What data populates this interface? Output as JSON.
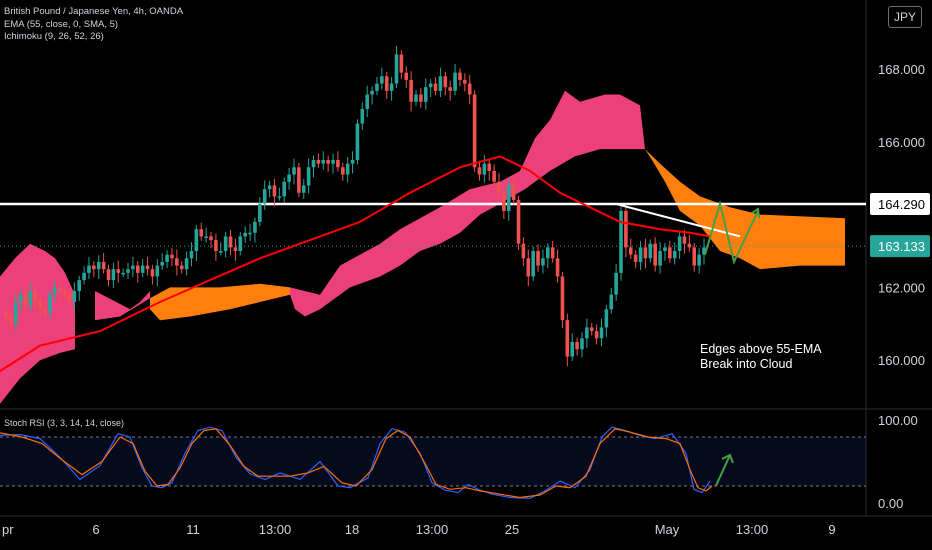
{
  "header": {
    "symbol": "British Pound / Japanese Yen, 4h, OANDA",
    "ema": "EMA (55, close, 0, SMA, 5)",
    "ichimoku": "Ichimoku (9, 26, 52, 26)",
    "currency": "JPY"
  },
  "stoch_legend": "Stoch RSI (3, 3, 14, 14, close)",
  "annotation": {
    "line1": "Edges above 55-EMA",
    "line2": "Break into Cloud"
  },
  "colors": {
    "up": "#26a69a",
    "down": "#ef5350",
    "ema": "#ff0000",
    "cloud_bull": "#ff7f0e",
    "cloud_bear": "#ec407a",
    "stoch_k": "#2962ff",
    "stoch_d": "#ff6d00",
    "arrow": "#43a047"
  },
  "chart_data": [
    {
      "type": "candlestick",
      "ylim": [
        158.6,
        169.6
      ],
      "yticks": [
        "168.000",
        "166.000",
        "162.000",
        "160.000"
      ],
      "xticks": [
        "pr",
        "6",
        "11",
        "13:00",
        "18",
        "13:00",
        "25",
        "May",
        "13:00",
        "9"
      ],
      "price_labels": [
        "164.290",
        "163.133"
      ],
      "resistance": 164.29,
      "last_price": 163.133,
      "closes": [
        161.2,
        161.0,
        161.6,
        161.8,
        161.5,
        161.9,
        161.6,
        161.4,
        161.3,
        161.8,
        162.0,
        161.9,
        161.8,
        161.6,
        161.9,
        162.2,
        162.4,
        162.6,
        162.5,
        162.7,
        162.5,
        162.2,
        162.5,
        162.4,
        162.4,
        162.5,
        162.6,
        162.4,
        162.6,
        162.5,
        162.3,
        162.6,
        162.7,
        162.9,
        162.8,
        162.6,
        162.5,
        162.8,
        163.0,
        163.6,
        163.4,
        163.4,
        163.3,
        163.0,
        163.0,
        163.4,
        163.1,
        163.0,
        163.4,
        163.5,
        163.5,
        163.8,
        164.3,
        164.7,
        164.8,
        164.5,
        164.5,
        164.9,
        165.1,
        165.3,
        164.6,
        164.8,
        165.3,
        165.5,
        165.4,
        165.5,
        165.4,
        165.5,
        165.3,
        165.1,
        165.4,
        165.5,
        166.5,
        166.9,
        167.3,
        167.4,
        167.6,
        167.8,
        167.4,
        167.6,
        168.4,
        167.9,
        167.7,
        167.1,
        167.3,
        167.1,
        167.5,
        167.6,
        167.4,
        167.8,
        167.5,
        167.4,
        167.9,
        167.7,
        167.6,
        167.3,
        165.3,
        165.1,
        165.4,
        165.2,
        164.9,
        164.6,
        164.1,
        164.8,
        164.4,
        163.2,
        162.8,
        162.3,
        163.0,
        162.6,
        162.8,
        163.1,
        162.8,
        162.3,
        161.1,
        160.1,
        160.5,
        160.3,
        160.6,
        160.9,
        160.8,
        160.6,
        160.9,
        161.4,
        161.8,
        162.4,
        164.1,
        163.1,
        162.9,
        162.7,
        163.1,
        162.8,
        163.2,
        162.6,
        163.0,
        163.1,
        162.8,
        163.0,
        163.4,
        163.2,
        163.1,
        162.6,
        162.9,
        163.1
      ],
      "ema55": [
        [
          0,
          159.7
        ],
        [
          40,
          160.4
        ],
        [
          100,
          160.8
        ],
        [
          160,
          161.6
        ],
        [
          210,
          162.2
        ],
        [
          260,
          162.8
        ],
        [
          310,
          163.3
        ],
        [
          360,
          163.8
        ],
        [
          410,
          164.6
        ],
        [
          460,
          165.3
        ],
        [
          500,
          165.6
        ],
        [
          530,
          165.2
        ],
        [
          560,
          164.6
        ],
        [
          590,
          164.2
        ],
        [
          620,
          163.8
        ],
        [
          660,
          163.6
        ],
        [
          690,
          163.5
        ],
        [
          710,
          163.4
        ]
      ],
      "cloud_bear": [
        [
          [
            0,
            162.3
          ],
          [
            15,
            162.8
          ],
          [
            30,
            163.2
          ],
          [
            45,
            163.0
          ],
          [
            55,
            162.8
          ],
          [
            65,
            162.4
          ],
          [
            75,
            161.8
          ],
          [
            75,
            160.3
          ],
          [
            60,
            160.2
          ],
          [
            40,
            160.0
          ],
          [
            20,
            159.5
          ],
          [
            0,
            158.8
          ]
        ],
        [
          [
            95,
            161.9
          ],
          [
            130,
            161.4
          ],
          [
            140,
            161.6
          ],
          [
            150,
            161.9
          ],
          [
            150,
            161.7
          ],
          [
            120,
            161.2
          ],
          [
            95,
            161.1
          ]
        ],
        [
          [
            290,
            162.0
          ],
          [
            320,
            161.8
          ],
          [
            340,
            162.6
          ],
          [
            380,
            163.2
          ],
          [
            400,
            163.6
          ],
          [
            440,
            164.2
          ],
          [
            470,
            164.7
          ],
          [
            500,
            164.9
          ],
          [
            520,
            165.2
          ],
          [
            535,
            166.1
          ],
          [
            550,
            166.6
          ],
          [
            565,
            167.4
          ],
          [
            580,
            167.1
          ],
          [
            605,
            167.3
          ],
          [
            620,
            167.3
          ],
          [
            640,
            167.0
          ],
          [
            645,
            165.8
          ],
          [
            630,
            165.8
          ],
          [
            600,
            165.8
          ],
          [
            575,
            165.6
          ],
          [
            550,
            165.2
          ],
          [
            525,
            164.7
          ],
          [
            500,
            164.3
          ],
          [
            480,
            164.0
          ],
          [
            460,
            163.5
          ],
          [
            440,
            163.2
          ],
          [
            420,
            163.0
          ],
          [
            400,
            162.6
          ],
          [
            380,
            162.3
          ],
          [
            350,
            162.0
          ],
          [
            320,
            161.4
          ],
          [
            305,
            161.2
          ],
          [
            295,
            161.4
          ],
          [
            290,
            161.8
          ]
        ]
      ],
      "cloud_bull": [
        [
          [
            150,
            161.7
          ],
          [
            170,
            162.0
          ],
          [
            220,
            162.0
          ],
          [
            260,
            162.1
          ],
          [
            290,
            162.0
          ],
          [
            290,
            161.8
          ],
          [
            260,
            161.6
          ],
          [
            230,
            161.4
          ],
          [
            190,
            161.2
          ],
          [
            160,
            161.1
          ],
          [
            150,
            161.4
          ]
        ],
        [
          [
            645,
            165.8
          ],
          [
            660,
            165.4
          ],
          [
            680,
            164.9
          ],
          [
            700,
            164.5
          ],
          [
            730,
            164.2
          ],
          [
            760,
            164.0
          ],
          [
            845,
            163.9
          ],
          [
            845,
            162.6
          ],
          [
            800,
            162.6
          ],
          [
            760,
            162.5
          ],
          [
            740,
            162.8
          ],
          [
            720,
            163.0
          ],
          [
            700,
            163.7
          ],
          [
            680,
            164.1
          ],
          [
            665,
            164.9
          ],
          [
            652,
            165.5
          ]
        ]
      ],
      "trendline": [
        [
          615,
          164.3
        ],
        [
          740,
          163.4
        ]
      ],
      "arrows": [
        [
          [
            705,
            162.9
          ],
          [
            720,
            164.3
          ],
          [
            734,
            162.7
          ],
          [
            758,
            164.1
          ]
        ]
      ]
    },
    {
      "type": "line",
      "title": "Stoch RSI (3, 3, 14, 14, close)",
      "ylim": [
        0,
        100
      ],
      "yticks": [
        "100.00",
        "0.00"
      ],
      "bands": [
        80,
        20
      ],
      "k": [
        [
          0,
          82
        ],
        [
          20,
          83
        ],
        [
          40,
          78
        ],
        [
          60,
          55
        ],
        [
          80,
          28
        ],
        [
          100,
          45
        ],
        [
          118,
          84
        ],
        [
          130,
          80
        ],
        [
          142,
          42
        ],
        [
          152,
          20
        ],
        [
          162,
          18
        ],
        [
          172,
          24
        ],
        [
          185,
          60
        ],
        [
          198,
          88
        ],
        [
          210,
          92
        ],
        [
          222,
          88
        ],
        [
          236,
          55
        ],
        [
          250,
          35
        ],
        [
          265,
          28
        ],
        [
          280,
          36
        ],
        [
          300,
          28
        ],
        [
          320,
          50
        ],
        [
          338,
          20
        ],
        [
          350,
          18
        ],
        [
          368,
          30
        ],
        [
          380,
          72
        ],
        [
          392,
          90
        ],
        [
          405,
          86
        ],
        [
          420,
          60
        ],
        [
          432,
          24
        ],
        [
          445,
          15
        ],
        [
          458,
          12
        ],
        [
          468,
          22
        ],
        [
          478,
          16
        ],
        [
          492,
          10
        ],
        [
          510,
          6
        ],
        [
          530,
          5
        ],
        [
          545,
          14
        ],
        [
          560,
          26
        ],
        [
          575,
          18
        ],
        [
          590,
          40
        ],
        [
          602,
          80
        ],
        [
          612,
          92
        ],
        [
          625,
          88
        ],
        [
          640,
          82
        ],
        [
          655,
          78
        ],
        [
          672,
          84
        ],
        [
          686,
          60
        ],
        [
          694,
          16
        ],
        [
          702,
          12
        ],
        [
          710,
          26
        ]
      ],
      "d": [
        [
          0,
          85
        ],
        [
          22,
          80
        ],
        [
          42,
          72
        ],
        [
          62,
          52
        ],
        [
          82,
          34
        ],
        [
          102,
          50
        ],
        [
          120,
          80
        ],
        [
          133,
          72
        ],
        [
          145,
          38
        ],
        [
          157,
          20
        ],
        [
          168,
          22
        ],
        [
          180,
          42
        ],
        [
          192,
          72
        ],
        [
          204,
          88
        ],
        [
          216,
          90
        ],
        [
          230,
          70
        ],
        [
          244,
          44
        ],
        [
          258,
          32
        ],
        [
          272,
          32
        ],
        [
          290,
          32
        ],
        [
          308,
          36
        ],
        [
          324,
          44
        ],
        [
          342,
          24
        ],
        [
          356,
          20
        ],
        [
          372,
          40
        ],
        [
          386,
          78
        ],
        [
          398,
          88
        ],
        [
          410,
          80
        ],
        [
          424,
          50
        ],
        [
          436,
          22
        ],
        [
          450,
          16
        ],
        [
          466,
          18
        ],
        [
          480,
          14
        ],
        [
          500,
          10
        ],
        [
          520,
          6
        ],
        [
          540,
          9
        ],
        [
          556,
          20
        ],
        [
          570,
          18
        ],
        [
          586,
          32
        ],
        [
          600,
          72
        ],
        [
          615,
          90
        ],
        [
          630,
          86
        ],
        [
          648,
          80
        ],
        [
          666,
          78
        ],
        [
          680,
          72
        ],
        [
          690,
          40
        ],
        [
          698,
          18
        ],
        [
          706,
          14
        ],
        [
          712,
          20
        ]
      ],
      "arrows": [
        [
          [
            716,
            190
          ],
          [
            730,
            260
          ]
        ]
      ]
    }
  ]
}
